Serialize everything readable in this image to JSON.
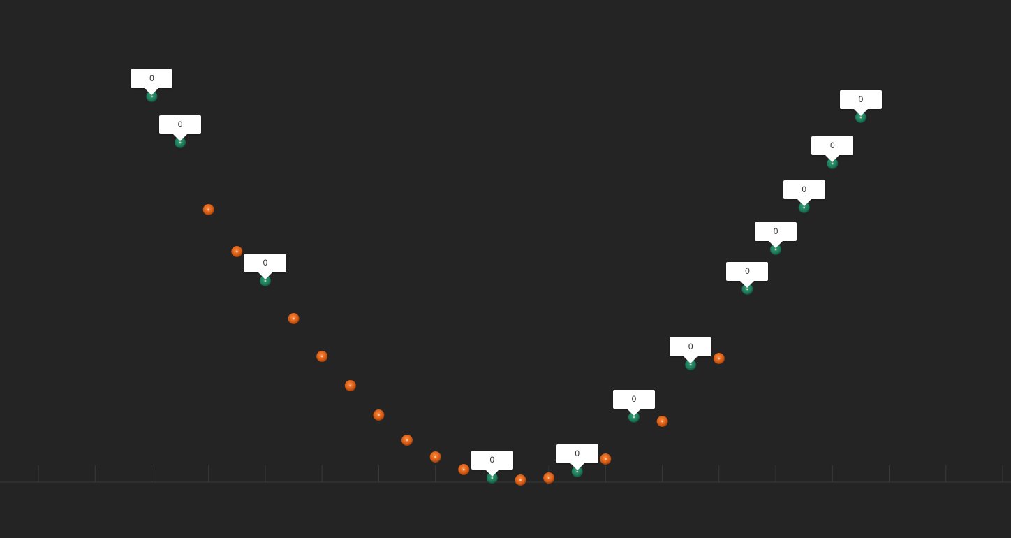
{
  "chart_data": {
    "type": "scatter",
    "xlim": [
      -1,
      16
    ],
    "ylim": [
      0,
      11
    ],
    "grid": false,
    "series": [
      {
        "color": "#d35a14",
        "marker": "orange-dot",
        "points": [
          [
            2,
            6.5
          ],
          [
            2.5,
            5.5
          ],
          [
            3.5,
            3.9
          ],
          [
            4,
            3.0
          ],
          [
            4.5,
            2.3
          ],
          [
            5,
            1.6
          ],
          [
            5.5,
            1.0
          ],
          [
            6,
            0.6
          ],
          [
            6.5,
            0.3
          ],
          [
            7.5,
            0.05
          ],
          [
            8,
            0.1
          ],
          [
            9,
            0.55
          ],
          [
            10,
            1.45
          ],
          [
            11,
            2.95
          ]
        ]
      },
      {
        "color": "#1e7a5a",
        "marker": "green-dot",
        "label_bg": "#ffffff",
        "points": [
          {
            "x": 1,
            "y": 9.2,
            "label": "0"
          },
          {
            "x": 1.5,
            "y": 8.1,
            "label": "0"
          },
          {
            "x": 3,
            "y": 4.8,
            "label": "0"
          },
          {
            "x": 7,
            "y": 0.1,
            "label": "0"
          },
          {
            "x": 8.5,
            "y": 0.25,
            "label": "0"
          },
          {
            "x": 9.5,
            "y": 1.55,
            "label": "0"
          },
          {
            "x": 10.5,
            "y": 2.8,
            "label": "0"
          },
          {
            "x": 11.5,
            "y": 4.6,
            "label": "0"
          },
          {
            "x": 12,
            "y": 5.55,
            "label": "0"
          },
          {
            "x": 12.5,
            "y": 6.55,
            "label": "0"
          },
          {
            "x": 13,
            "y": 7.6,
            "label": "0"
          },
          {
            "x": 13.5,
            "y": 8.7,
            "label": "0"
          }
        ]
      }
    ]
  }
}
